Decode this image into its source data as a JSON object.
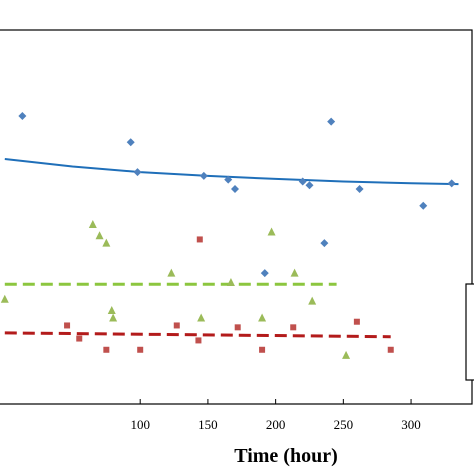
{
  "chart_data": {
    "type": "scatter",
    "title": "",
    "xlabel": "Time (hour)",
    "ylabel": "",
    "xlim": [
      -5,
      345
    ],
    "ylim": [
      0,
      10
    ],
    "x_ticks": [
      100,
      150,
      200,
      250,
      300
    ],
    "grid": false,
    "legend": "right",
    "series": [
      {
        "marker": "diamond",
        "color": "#4f81bd",
        "points": [
          [
            13,
            7.7
          ],
          [
            93,
            7.0
          ],
          [
            98,
            6.2
          ],
          [
            147,
            6.1
          ],
          [
            165,
            6.0
          ],
          [
            170,
            5.75
          ],
          [
            192,
            3.5
          ],
          [
            220,
            5.95
          ],
          [
            225,
            5.85
          ],
          [
            236,
            4.3
          ],
          [
            241,
            7.55
          ],
          [
            262,
            5.75
          ],
          [
            309,
            5.3
          ],
          [
            330,
            5.9
          ]
        ],
        "trend": {
          "style": "solid",
          "color": "#1f6fb9",
          "points": [
            [
              0,
              6.55
            ],
            [
              50,
              6.35
            ],
            [
              100,
              6.2
            ],
            [
              150,
              6.1
            ],
            [
              200,
              6.02
            ],
            [
              250,
              5.95
            ],
            [
              300,
              5.9
            ],
            [
              335,
              5.88
            ]
          ]
        }
      },
      {
        "marker": "triangle",
        "color": "#9bbb59",
        "points": [
          [
            65,
            4.8
          ],
          [
            70,
            4.5
          ],
          [
            75,
            4.3
          ],
          [
            79,
            2.5
          ],
          [
            80,
            2.3
          ],
          [
            123,
            3.5
          ],
          [
            145,
            2.3
          ],
          [
            167,
            3.25
          ],
          [
            190,
            2.3
          ],
          [
            197,
            4.6
          ],
          [
            214,
            3.5
          ],
          [
            227,
            2.75
          ],
          [
            252,
            1.3
          ],
          [
            0,
            2.8
          ]
        ],
        "trend": {
          "style": "dashed",
          "color": "#8cc63f",
          "points": [
            [
              0,
              3.2
            ],
            [
              245,
              3.2
            ]
          ]
        }
      },
      {
        "marker": "square",
        "color": "#c0504d",
        "points": [
          [
            46,
            2.1
          ],
          [
            55,
            1.75
          ],
          [
            75,
            1.45
          ],
          [
            100,
            1.45
          ],
          [
            127,
            2.1
          ],
          [
            143,
            1.7
          ],
          [
            144,
            4.4
          ],
          [
            172,
            2.05
          ],
          [
            190,
            1.45
          ],
          [
            213,
            2.05
          ],
          [
            260,
            2.2
          ],
          [
            285,
            1.45
          ]
        ],
        "trend": {
          "style": "dashed",
          "color": "#b31b1b",
          "points": [
            [
              0,
              1.9
            ],
            [
              285,
              1.8
            ]
          ]
        }
      }
    ]
  }
}
